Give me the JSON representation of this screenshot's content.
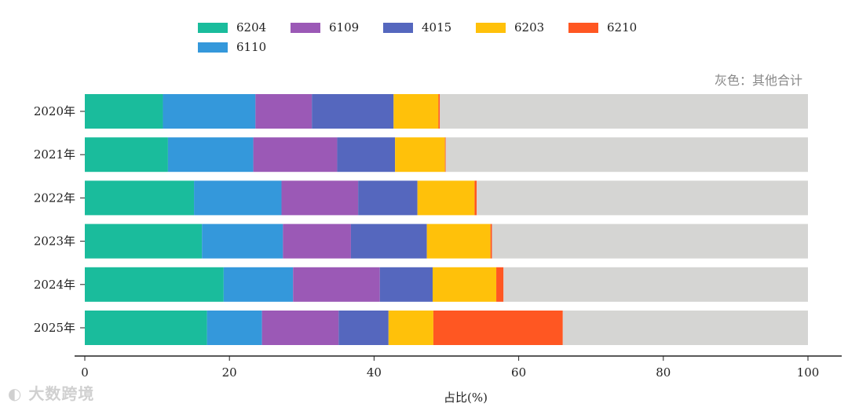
{
  "chart_data": {
    "type": "bar",
    "orientation": "horizontal",
    "stacked": true,
    "categories": [
      "2020年",
      "2021年",
      "2022年",
      "2023年",
      "2024年",
      "2025年"
    ],
    "series": [
      {
        "name": "6204",
        "color": "#1ABC9C",
        "values": [
          10.8,
          11.5,
          15.1,
          16.2,
          19.2,
          16.9
        ]
      },
      {
        "name": "6110",
        "color": "#3498DB",
        "values": [
          12.8,
          11.8,
          12.1,
          11.2,
          9.6,
          7.6
        ]
      },
      {
        "name": "6109",
        "color": "#9B59B6",
        "values": [
          7.8,
          11.6,
          10.6,
          9.4,
          12.0,
          10.6
        ]
      },
      {
        "name": "4015",
        "color": "#5567BE",
        "values": [
          11.3,
          8.0,
          8.2,
          10.5,
          7.3,
          6.9
        ]
      },
      {
        "name": "6203",
        "color": "#FFC10A",
        "values": [
          6.2,
          6.9,
          7.9,
          8.8,
          8.8,
          6.2
        ]
      },
      {
        "name": "6210",
        "color": "#FF5722",
        "values": [
          0.2,
          0.1,
          0.3,
          0.2,
          1.0,
          17.9
        ]
      },
      {
        "name": "其他合计",
        "color": "#D5D5D3",
        "values": [
          50.9,
          50.1,
          45.8,
          43.7,
          42.1,
          33.9
        ]
      }
    ],
    "legend": [
      "6204",
      "6109",
      "4015",
      "6203",
      "6210",
      "6110"
    ],
    "xlabel": "占比(%)",
    "ylabel": "",
    "xlim": [
      0,
      100
    ],
    "xticks": [
      0,
      20,
      40,
      60,
      80,
      100
    ],
    "note": "灰色：其他合计"
  },
  "watermark": "大数跨境"
}
